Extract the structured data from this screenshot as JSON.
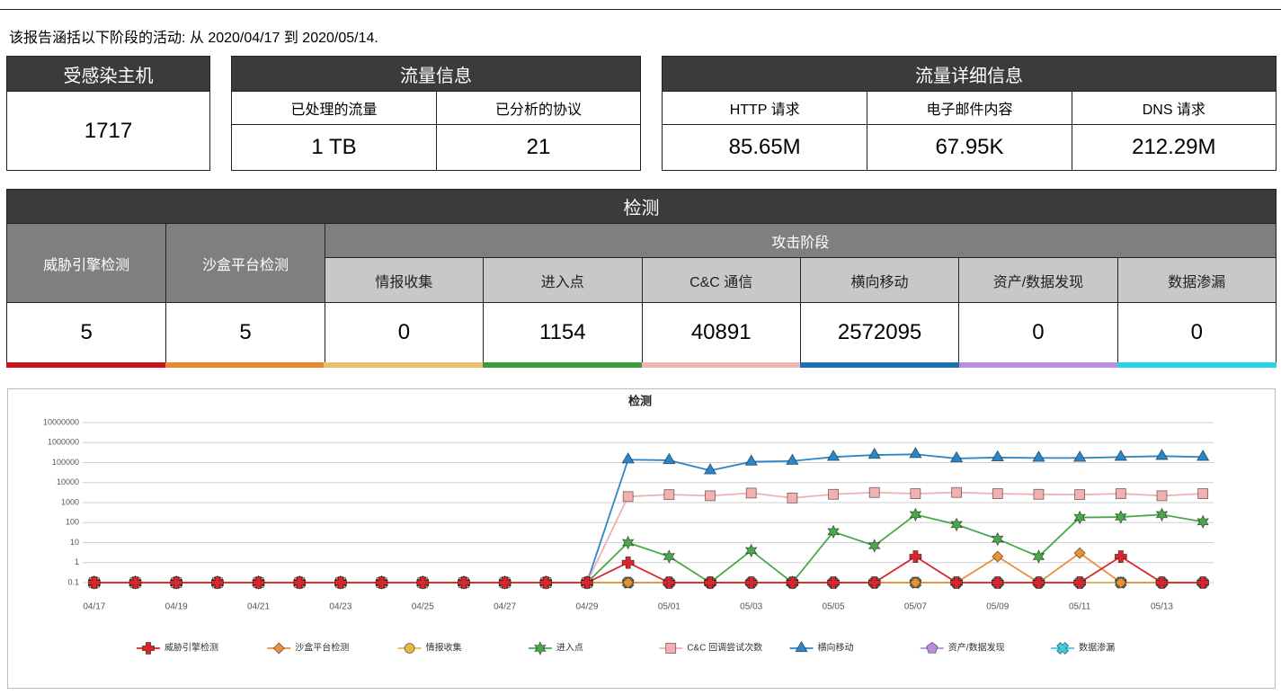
{
  "report": {
    "intro": "该报告涵括以下阶段的活动: 从 2020/04/17 到 2020/05/14."
  },
  "summary": {
    "infected": {
      "title": "受感染主机",
      "value": "1717"
    },
    "traffic": {
      "title": "流量信息",
      "headers": [
        "已处理的流量",
        "已分析的协议"
      ],
      "values": [
        "1 TB",
        "21"
      ]
    },
    "detail": {
      "title": "流量详细信息",
      "headers": [
        "HTTP 请求",
        "电子邮件内容",
        "DNS 请求"
      ],
      "values": [
        "85.65M",
        "67.95K",
        "212.29M"
      ]
    }
  },
  "detection": {
    "title": "检测",
    "headers": [
      "威胁引擎检测",
      "沙盒平台检测"
    ],
    "stage_title": "攻击阶段",
    "stages": [
      "情报收集",
      "进入点",
      "C&C 通信",
      "横向移动",
      "资产/数据发现",
      "数据渗漏"
    ],
    "values": [
      "5",
      "5",
      "0",
      "1154",
      "40891",
      "2572095",
      "0",
      "0"
    ]
  },
  "chart_data": {
    "type": "line",
    "title": "检测",
    "yscale": "log",
    "grid": true,
    "categories": [
      "04/17",
      null,
      "04/19",
      null,
      "04/21",
      null,
      "04/23",
      null,
      "04/25",
      null,
      "04/27",
      null,
      "04/29",
      null,
      "05/01",
      null,
      "05/03",
      null,
      "05/05",
      null,
      "05/07",
      null,
      "05/09",
      null,
      "05/11",
      null,
      "05/13",
      null
    ],
    "ylim": [
      0.1,
      10000000
    ],
    "yticks": [
      0.1,
      1,
      10,
      100,
      1000,
      10000,
      100000,
      1000000,
      10000000
    ],
    "series": [
      {
        "name": "威胁引擎检测",
        "color": "#d9262e",
        "marker": "cross",
        "values": [
          0.1,
          0.1,
          0.1,
          0.1,
          0.1,
          0.1,
          0.1,
          0.1,
          0.1,
          0.1,
          0.1,
          0.1,
          0.1,
          1,
          0.1,
          0.1,
          0.1,
          0.1,
          0.1,
          0.1,
          2,
          0.1,
          0.1,
          0.1,
          0.1,
          2,
          0.1,
          0.1
        ]
      },
      {
        "name": "沙盒平台检测",
        "color": "#e8913a",
        "marker": "diamond",
        "values": [
          0.1,
          0.1,
          0.1,
          0.1,
          0.1,
          0.1,
          0.1,
          0.1,
          0.1,
          0.1,
          0.1,
          0.1,
          0.1,
          0.1,
          0.1,
          0.1,
          0.1,
          0.1,
          0.1,
          0.1,
          0.1,
          0.1,
          2,
          0.1,
          3,
          0.1,
          0.1,
          0.1
        ]
      },
      {
        "name": "情报收集",
        "color": "#e8b84a",
        "marker": "circle",
        "values": [
          0.1,
          0.1,
          0.1,
          0.1,
          0.1,
          0.1,
          0.1,
          0.1,
          0.1,
          0.1,
          0.1,
          0.1,
          0.1,
          0.1,
          0.1,
          0.1,
          0.1,
          0.1,
          0.1,
          0.1,
          0.1,
          0.1,
          0.1,
          0.1,
          0.1,
          0.1,
          0.1,
          0.1
        ]
      },
      {
        "name": "进入点",
        "color": "#4aa84a",
        "marker": "star",
        "values": [
          0.1,
          0.1,
          0.1,
          0.1,
          0.1,
          0.1,
          0.1,
          0.1,
          0.1,
          0.1,
          0.1,
          0.1,
          0.1,
          10,
          2,
          0.1,
          4,
          0.1,
          35,
          7,
          250,
          80,
          15,
          2,
          180,
          190,
          250,
          110
        ]
      },
      {
        "name": "C&C 回调尝试次数",
        "color": "#f2b0b0",
        "marker": "square",
        "values": [
          0.1,
          0.1,
          0.1,
          0.1,
          0.1,
          0.1,
          0.1,
          0.1,
          0.1,
          0.1,
          0.1,
          0.1,
          0.1,
          2000,
          2500,
          2200,
          3000,
          1700,
          2600,
          3200,
          2800,
          3200,
          2800,
          2600,
          2500,
          2800,
          2200,
          2800
        ]
      },
      {
        "name": "横向移动",
        "color": "#2b86c8",
        "marker": "triangle",
        "values": [
          0.1,
          0.1,
          0.1,
          0.1,
          0.1,
          0.1,
          0.1,
          0.1,
          0.1,
          0.1,
          0.1,
          0.1,
          0.1,
          140000,
          130000,
          40000,
          110000,
          120000,
          190000,
          240000,
          260000,
          160000,
          180000,
          170000,
          170000,
          190000,
          210000,
          190000
        ]
      },
      {
        "name": "资产/数据发现",
        "color": "#b88fe0",
        "marker": "pentagon",
        "values": [
          0.1,
          0.1,
          0.1,
          0.1,
          0.1,
          0.1,
          0.1,
          0.1,
          0.1,
          0.1,
          0.1,
          0.1,
          0.1,
          0.1,
          0.1,
          0.1,
          0.1,
          0.1,
          0.1,
          0.1,
          0.1,
          0.1,
          0.1,
          0.1,
          0.1,
          0.1,
          0.1,
          0.1
        ]
      },
      {
        "name": "数据渗漏",
        "color": "#3fc8e0",
        "marker": "x",
        "values": [
          0.1,
          0.1,
          0.1,
          0.1,
          0.1,
          0.1,
          0.1,
          0.1,
          0.1,
          0.1,
          0.1,
          0.1,
          0.1,
          0.1,
          0.1,
          0.1,
          0.1,
          0.1,
          0.1,
          0.1,
          0.1,
          0.1,
          0.1,
          0.1,
          0.1,
          0.1,
          0.1,
          0.1
        ]
      }
    ]
  }
}
